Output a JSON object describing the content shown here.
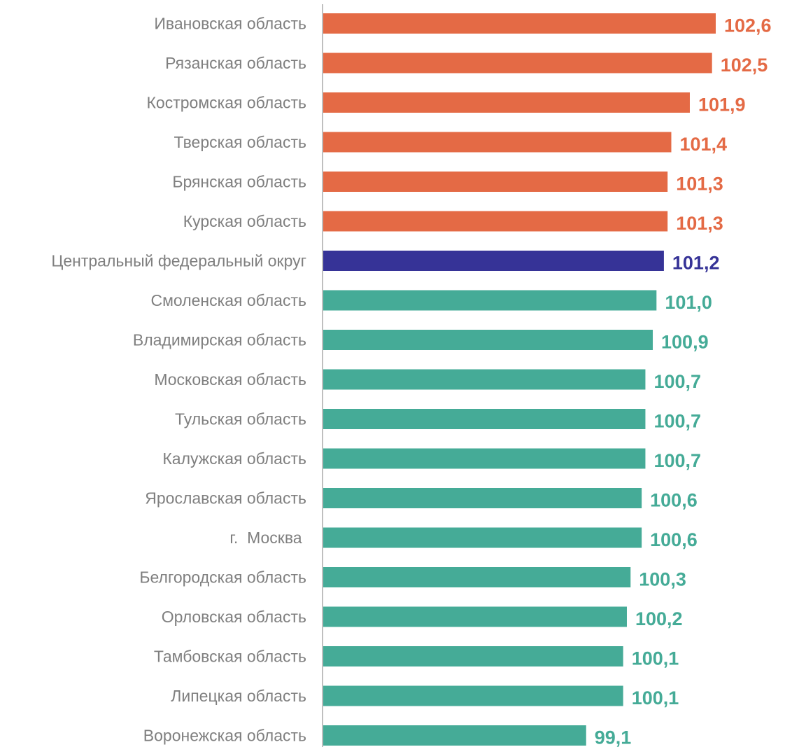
{
  "chart_data": {
    "type": "bar",
    "orientation": "horizontal",
    "categories": [
      "Ивановская область",
      "Рязанская область",
      "Костромская область",
      "Тверская область",
      "Брянская область",
      "Курская область",
      "Центральный федеральный округ",
      "Смоленская область",
      "Владимирская область",
      "Московская область",
      "Тульская область",
      "Калужская область",
      "Ярославская область",
      "г.  Москва ",
      "Белгородская область",
      "Орловская область",
      "Тамбовская область",
      "Липецкая область",
      "Воронежская область"
    ],
    "values": [
      102.6,
      102.5,
      101.9,
      101.4,
      101.3,
      101.3,
      101.2,
      101.0,
      100.9,
      100.7,
      100.7,
      100.7,
      100.6,
      100.6,
      100.3,
      100.2,
      100.1,
      100.1,
      99.1
    ],
    "value_labels": [
      "102,6",
      "102,5",
      "101,9",
      "101,4",
      "101,3",
      "101,3",
      "101,2",
      "101,0",
      "100,9",
      "100,7",
      "100,7",
      "100,7",
      "100,6",
      "100,6",
      "100,3",
      "100,2",
      "100,1",
      "100,1",
      "99,1"
    ],
    "bar_groups": [
      "above",
      "above",
      "above",
      "above",
      "above",
      "above",
      "district",
      "below",
      "below",
      "below",
      "below",
      "below",
      "below",
      "below",
      "below",
      "below",
      "below",
      "below",
      "below"
    ],
    "colors": {
      "above": "#e46a45",
      "district": "#363397",
      "below": "#45ab97",
      "axis": "#bfbfbf",
      "category_text": "#7f7f7f"
    },
    "xlim": [
      92.0,
      102.6
    ],
    "grid": false,
    "legend": "none",
    "title": "",
    "xlabel": "",
    "ylabel": ""
  }
}
